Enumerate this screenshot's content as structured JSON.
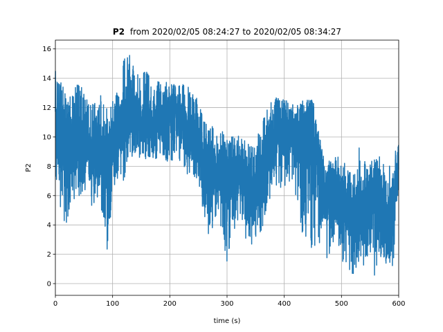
{
  "chart_data": {
    "type": "line",
    "title_bold": "P2",
    "title": "from 2020/02/05 08:24:27 to 2020/02/05 08:34:27",
    "xlabel": "time (s)",
    "ylabel": "P2",
    "xlim": [
      0,
      600
    ],
    "ylim": [
      -0.8,
      16.6
    ],
    "x_ticks": [
      0,
      100,
      200,
      300,
      400,
      500,
      600
    ],
    "y_ticks": [
      0,
      2,
      4,
      6,
      8,
      10,
      12,
      14,
      16
    ],
    "grid": true,
    "color": "#1f77b4",
    "series": [
      {
        "x": [
          0,
          10,
          20,
          30,
          40,
          50,
          60,
          70,
          80,
          90,
          100,
          110,
          120,
          130,
          140,
          150,
          160,
          170,
          180,
          190,
          200,
          210,
          220,
          230,
          240,
          250,
          260,
          270,
          280,
          290,
          300,
          310,
          320,
          330,
          340,
          350,
          360,
          370,
          380,
          390,
          400,
          410,
          420,
          430,
          440,
          450,
          460,
          470,
          480,
          490,
          500,
          510,
          520,
          530,
          540,
          550,
          560,
          570,
          580,
          590,
          600
        ],
        "center": [
          10.5,
          10.0,
          9.0,
          9.5,
          9.5,
          9.5,
          9.0,
          9.0,
          9.0,
          8.5,
          9.5,
          10.5,
          11.0,
          12.0,
          11.5,
          11.0,
          11.0,
          10.5,
          11.0,
          11.5,
          11.5,
          11.5,
          11.0,
          10.0,
          10.0,
          9.5,
          8.0,
          8.0,
          7.5,
          7.5,
          7.0,
          8.0,
          8.0,
          7.0,
          6.5,
          6.5,
          7.0,
          8.5,
          9.5,
          10.5,
          10.5,
          10.5,
          10.0,
          10.0,
          10.5,
          10.0,
          8.0,
          6.0,
          6.0,
          6.0,
          5.5,
          5.0,
          4.5,
          5.0,
          5.0,
          5.5,
          6.0,
          5.5,
          4.0,
          5.5,
          7.5
        ],
        "upper": [
          14.5,
          14.0,
          12.5,
          13.0,
          14.3,
          13.0,
          12.5,
          12.5,
          13.0,
          12.0,
          12.5,
          14.0,
          15.5,
          15.8,
          14.5,
          14.3,
          14.5,
          13.5,
          13.8,
          14.0,
          14.0,
          13.5,
          13.5,
          14.0,
          13.0,
          12.5,
          11.0,
          11.0,
          10.5,
          10.5,
          10.0,
          10.0,
          10.5,
          10.0,
          9.5,
          9.5,
          11.0,
          12.0,
          12.5,
          12.8,
          12.5,
          12.5,
          12.0,
          12.5,
          12.5,
          12.5,
          10.5,
          8.5,
          8.5,
          9.5,
          8.5,
          8.0,
          8.0,
          9.5,
          8.5,
          8.5,
          9.0,
          8.5,
          7.5,
          9.0,
          9.5
        ],
        "lower": [
          7.0,
          5.0,
          3.0,
          5.5,
          6.0,
          6.0,
          5.0,
          5.5,
          5.0,
          1.8,
          6.0,
          7.0,
          7.0,
          8.5,
          8.5,
          8.5,
          8.5,
          8.5,
          8.5,
          8.5,
          8.0,
          8.5,
          8.0,
          7.5,
          7.0,
          7.0,
          4.5,
          3.0,
          4.5,
          3.5,
          1.2,
          3.0,
          4.5,
          3.0,
          2.5,
          3.0,
          3.5,
          4.5,
          6.0,
          6.5,
          6.0,
          7.0,
          6.0,
          3.5,
          3.0,
          2.0,
          3.0,
          1.5,
          2.0,
          2.5,
          1.5,
          1.0,
          0.5,
          1.5,
          1.0,
          1.5,
          0.2,
          2.0,
          1.2,
          1.0,
          6.5
        ]
      }
    ]
  }
}
